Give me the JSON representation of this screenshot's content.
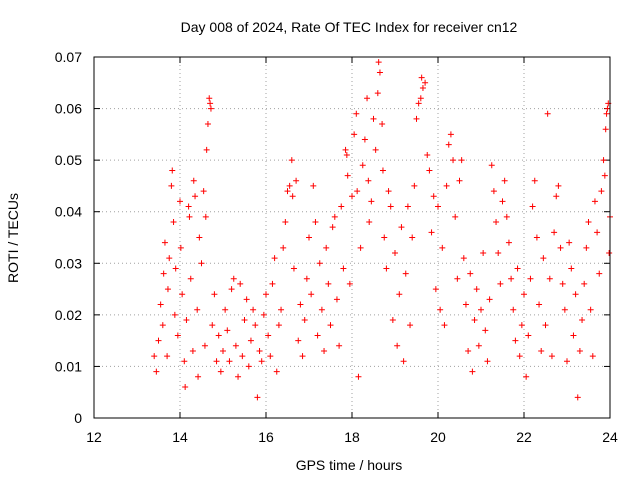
{
  "chart_data": {
    "type": "scatter",
    "title": "Day 008 of 2024, Rate Of TEC Index for receiver cn12",
    "xlabel": "GPS time / hours",
    "ylabel": "ROTI / TECUs",
    "xlim": [
      12,
      24
    ],
    "ylim": [
      0,
      0.07
    ],
    "x_ticks": [
      12,
      14,
      16,
      18,
      20,
      22,
      24
    ],
    "y_ticks": [
      0,
      0.01,
      0.02,
      0.03,
      0.04,
      0.05,
      0.06,
      0.07
    ],
    "x_tick_labels": [
      "12",
      "14",
      "16",
      "18",
      "20",
      "22",
      "24"
    ],
    "y_tick_labels": [
      "0",
      "0.01",
      "0.02",
      "0.03",
      "0.04",
      "0.05",
      "0.06",
      "0.07"
    ],
    "grid": true,
    "marker": "+",
    "color": "#ff0000",
    "series": [
      {
        "name": "ROTI",
        "points": [
          [
            13.4,
            0.012
          ],
          [
            13.45,
            0.009
          ],
          [
            13.5,
            0.015
          ],
          [
            13.55,
            0.022
          ],
          [
            13.6,
            0.018
          ],
          [
            13.62,
            0.028
          ],
          [
            13.65,
            0.034
          ],
          [
            13.7,
            0.012
          ],
          [
            13.72,
            0.025
          ],
          [
            13.75,
            0.031
          ],
          [
            13.8,
            0.045
          ],
          [
            13.82,
            0.048
          ],
          [
            13.85,
            0.038
          ],
          [
            13.88,
            0.02
          ],
          [
            13.9,
            0.029
          ],
          [
            13.95,
            0.016
          ],
          [
            14.0,
            0.042
          ],
          [
            14.02,
            0.033
          ],
          [
            14.05,
            0.024
          ],
          [
            14.1,
            0.011
          ],
          [
            14.12,
            0.006
          ],
          [
            14.15,
            0.019
          ],
          [
            14.2,
            0.041
          ],
          [
            14.22,
            0.039
          ],
          [
            14.25,
            0.027
          ],
          [
            14.3,
            0.013
          ],
          [
            14.32,
            0.046
          ],
          [
            14.35,
            0.043
          ],
          [
            14.4,
            0.021
          ],
          [
            14.42,
            0.008
          ],
          [
            14.45,
            0.035
          ],
          [
            14.5,
            0.03
          ],
          [
            14.55,
            0.044
          ],
          [
            14.58,
            0.014
          ],
          [
            14.6,
            0.039
          ],
          [
            14.62,
            0.052
          ],
          [
            14.65,
            0.057
          ],
          [
            14.68,
            0.062
          ],
          [
            14.7,
            0.061
          ],
          [
            14.72,
            0.06
          ],
          [
            14.75,
            0.018
          ],
          [
            14.8,
            0.024
          ],
          [
            14.85,
            0.011
          ],
          [
            14.9,
            0.016
          ],
          [
            14.95,
            0.009
          ],
          [
            15.0,
            0.013
          ],
          [
            15.05,
            0.021
          ],
          [
            15.1,
            0.017
          ],
          [
            15.15,
            0.011
          ],
          [
            15.2,
            0.025
          ],
          [
            15.25,
            0.027
          ],
          [
            15.3,
            0.014
          ],
          [
            15.35,
            0.008
          ],
          [
            15.4,
            0.026
          ],
          [
            15.45,
            0.012
          ],
          [
            15.5,
            0.019
          ],
          [
            15.55,
            0.023
          ],
          [
            15.6,
            0.01
          ],
          [
            15.65,
            0.015
          ],
          [
            15.7,
            0.021
          ],
          [
            15.75,
            0.018
          ],
          [
            15.8,
            0.004
          ],
          [
            15.85,
            0.013
          ],
          [
            15.9,
            0.011
          ],
          [
            15.95,
            0.02
          ],
          [
            16.0,
            0.024
          ],
          [
            16.05,
            0.016
          ],
          [
            16.1,
            0.012
          ],
          [
            16.15,
            0.026
          ],
          [
            16.2,
            0.031
          ],
          [
            16.25,
            0.009
          ],
          [
            16.3,
            0.018
          ],
          [
            16.35,
            0.021
          ],
          [
            16.4,
            0.033
          ],
          [
            16.45,
            0.038
          ],
          [
            16.5,
            0.044
          ],
          [
            16.55,
            0.045
          ],
          [
            16.6,
            0.05
          ],
          [
            16.62,
            0.043
          ],
          [
            16.65,
            0.029
          ],
          [
            16.7,
            0.046
          ],
          [
            16.75,
            0.015
          ],
          [
            16.8,
            0.022
          ],
          [
            16.85,
            0.012
          ],
          [
            16.9,
            0.019
          ],
          [
            16.95,
            0.027
          ],
          [
            17.0,
            0.035
          ],
          [
            17.05,
            0.024
          ],
          [
            17.1,
            0.045
          ],
          [
            17.15,
            0.038
          ],
          [
            17.2,
            0.016
          ],
          [
            17.25,
            0.03
          ],
          [
            17.3,
            0.021
          ],
          [
            17.35,
            0.013
          ],
          [
            17.4,
            0.033
          ],
          [
            17.45,
            0.026
          ],
          [
            17.5,
            0.018
          ],
          [
            17.55,
            0.037
          ],
          [
            17.6,
            0.039
          ],
          [
            17.65,
            0.023
          ],
          [
            17.7,
            0.014
          ],
          [
            17.75,
            0.041
          ],
          [
            17.8,
            0.029
          ],
          [
            17.85,
            0.052
          ],
          [
            17.88,
            0.051
          ],
          [
            17.9,
            0.047
          ],
          [
            17.95,
            0.026
          ],
          [
            18.0,
            0.043
          ],
          [
            18.05,
            0.055
          ],
          [
            18.1,
            0.059
          ],
          [
            18.12,
            0.044
          ],
          [
            18.15,
            0.008
          ],
          [
            18.2,
            0.033
          ],
          [
            18.25,
            0.049
          ],
          [
            18.3,
            0.054
          ],
          [
            18.35,
            0.062
          ],
          [
            18.38,
            0.046
          ],
          [
            18.4,
            0.038
          ],
          [
            18.45,
            0.042
          ],
          [
            18.5,
            0.058
          ],
          [
            18.55,
            0.052
          ],
          [
            18.6,
            0.063
          ],
          [
            18.62,
            0.069
          ],
          [
            18.65,
            0.067
          ],
          [
            18.7,
            0.057
          ],
          [
            18.72,
            0.048
          ],
          [
            18.75,
            0.035
          ],
          [
            18.8,
            0.029
          ],
          [
            18.85,
            0.044
          ],
          [
            18.9,
            0.041
          ],
          [
            18.95,
            0.019
          ],
          [
            19.0,
            0.032
          ],
          [
            19.05,
            0.014
          ],
          [
            19.1,
            0.024
          ],
          [
            19.15,
            0.037
          ],
          [
            19.2,
            0.011
          ],
          [
            19.25,
            0.028
          ],
          [
            19.3,
            0.041
          ],
          [
            19.35,
            0.018
          ],
          [
            19.4,
            0.035
          ],
          [
            19.45,
            0.045
          ],
          [
            19.5,
            0.058
          ],
          [
            19.55,
            0.061
          ],
          [
            19.6,
            0.062
          ],
          [
            19.62,
            0.066
          ],
          [
            19.65,
            0.064
          ],
          [
            19.7,
            0.065
          ],
          [
            19.75,
            0.051
          ],
          [
            19.8,
            0.048
          ],
          [
            19.85,
            0.036
          ],
          [
            19.9,
            0.043
          ],
          [
            19.95,
            0.025
          ],
          [
            20.0,
            0.041
          ],
          [
            20.05,
            0.021
          ],
          [
            20.1,
            0.033
          ],
          [
            20.15,
            0.018
          ],
          [
            20.2,
            0.045
          ],
          [
            20.25,
            0.053
          ],
          [
            20.3,
            0.055
          ],
          [
            20.35,
            0.05
          ],
          [
            20.4,
            0.039
          ],
          [
            20.45,
            0.027
          ],
          [
            20.5,
            0.046
          ],
          [
            20.55,
            0.05
          ],
          [
            20.6,
            0.031
          ],
          [
            20.65,
            0.022
          ],
          [
            20.7,
            0.013
          ],
          [
            20.75,
            0.028
          ],
          [
            20.8,
            0.009
          ],
          [
            20.85,
            0.019
          ],
          [
            20.9,
            0.025
          ],
          [
            20.95,
            0.014
          ],
          [
            21.0,
            0.021
          ],
          [
            21.05,
            0.032
          ],
          [
            21.1,
            0.017
          ],
          [
            21.15,
            0.011
          ],
          [
            21.2,
            0.023
          ],
          [
            21.25,
            0.049
          ],
          [
            21.3,
            0.044
          ],
          [
            21.35,
            0.038
          ],
          [
            21.4,
            0.032
          ],
          [
            21.45,
            0.026
          ],
          [
            21.5,
            0.042
          ],
          [
            21.55,
            0.046
          ],
          [
            21.6,
            0.039
          ],
          [
            21.65,
            0.034
          ],
          [
            21.7,
            0.027
          ],
          [
            21.75,
            0.021
          ],
          [
            21.8,
            0.015
          ],
          [
            21.85,
            0.029
          ],
          [
            21.9,
            0.012
          ],
          [
            21.95,
            0.018
          ],
          [
            22.0,
            0.024
          ],
          [
            22.05,
            0.008
          ],
          [
            22.1,
            0.016
          ],
          [
            22.15,
            0.027
          ],
          [
            22.2,
            0.041
          ],
          [
            22.25,
            0.046
          ],
          [
            22.3,
            0.035
          ],
          [
            22.35,
            0.022
          ],
          [
            22.4,
            0.013
          ],
          [
            22.45,
            0.031
          ],
          [
            22.5,
            0.018
          ],
          [
            22.55,
            0.059
          ],
          [
            22.6,
            0.027
          ],
          [
            22.65,
            0.012
          ],
          [
            22.7,
            0.036
          ],
          [
            22.75,
            0.043
          ],
          [
            22.8,
            0.045
          ],
          [
            22.85,
            0.033
          ],
          [
            22.9,
            0.026
          ],
          [
            22.95,
            0.021
          ],
          [
            23.0,
            0.011
          ],
          [
            23.05,
            0.034
          ],
          [
            23.1,
            0.029
          ],
          [
            23.15,
            0.016
          ],
          [
            23.2,
            0.024
          ],
          [
            23.25,
            0.004
          ],
          [
            23.3,
            0.013
          ],
          [
            23.35,
            0.019
          ],
          [
            23.4,
            0.026
          ],
          [
            23.45,
            0.033
          ],
          [
            23.5,
            0.038
          ],
          [
            23.55,
            0.021
          ],
          [
            23.6,
            0.012
          ],
          [
            23.65,
            0.042
          ],
          [
            23.7,
            0.036
          ],
          [
            23.75,
            0.028
          ],
          [
            23.8,
            0.044
          ],
          [
            23.85,
            0.05
          ],
          [
            23.88,
            0.047
          ],
          [
            23.9,
            0.056
          ],
          [
            23.92,
            0.059
          ],
          [
            23.94,
            0.06
          ],
          [
            23.96,
            0.061
          ],
          [
            23.98,
            0.032
          ],
          [
            24.0,
            0.039
          ]
        ]
      }
    ]
  }
}
